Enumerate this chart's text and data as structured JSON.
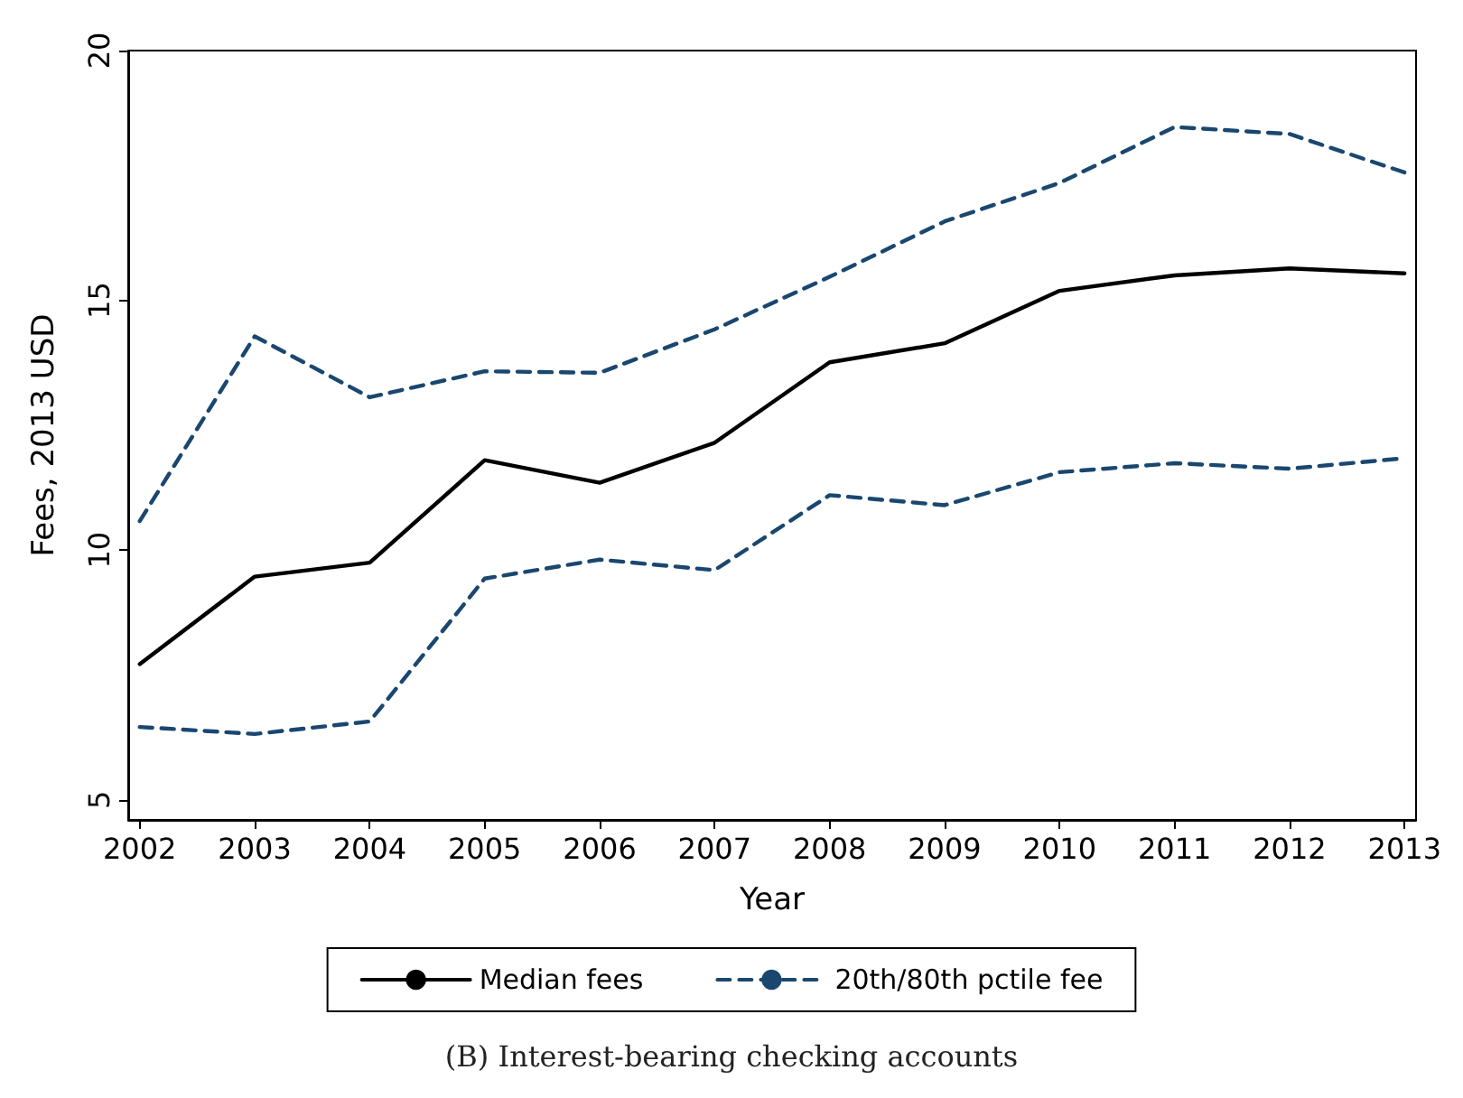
{
  "chart_data": {
    "type": "line",
    "title": "(B) Interest-bearing checking accounts",
    "xlabel": "Year",
    "ylabel": "Fees, 2013 USD",
    "x": [
      2002,
      2003,
      2004,
      2005,
      2006,
      2007,
      2008,
      2009,
      2010,
      2011,
      2012,
      2013
    ],
    "series": [
      {
        "name": "Median fees",
        "color": "#000000",
        "line_style": "solid",
        "values": [
          7.72,
          9.47,
          9.75,
          11.8,
          11.35,
          12.15,
          13.76,
          14.14,
          15.19,
          15.5,
          15.64,
          15.54
        ]
      },
      {
        "name": "20th/80th pctile fee",
        "color": "#1a476f",
        "line_style": "dashed",
        "values": [
          10.58,
          14.28,
          13.06,
          13.58,
          13.55,
          14.42,
          15.47,
          16.58,
          17.35,
          18.47,
          18.33,
          17.56
        ]
      },
      {
        "color": "#1a476f",
        "line_style": "dashed",
        "values": [
          6.46,
          6.32,
          6.57,
          9.43,
          9.81,
          9.6,
          11.1,
          10.9,
          11.56,
          11.74,
          11.63,
          11.84
        ]
      }
    ],
    "xlim": [
      2001.9,
      2013.1
    ],
    "xticks": [
      2002,
      2003,
      2004,
      2005,
      2006,
      2007,
      2008,
      2009,
      2010,
      2011,
      2012,
      2013
    ],
    "ylim": [
      4.6,
      20
    ],
    "yticks": [
      5,
      10,
      15,
      20
    ],
    "grid": false,
    "legend": "bottom",
    "marker": "none"
  }
}
